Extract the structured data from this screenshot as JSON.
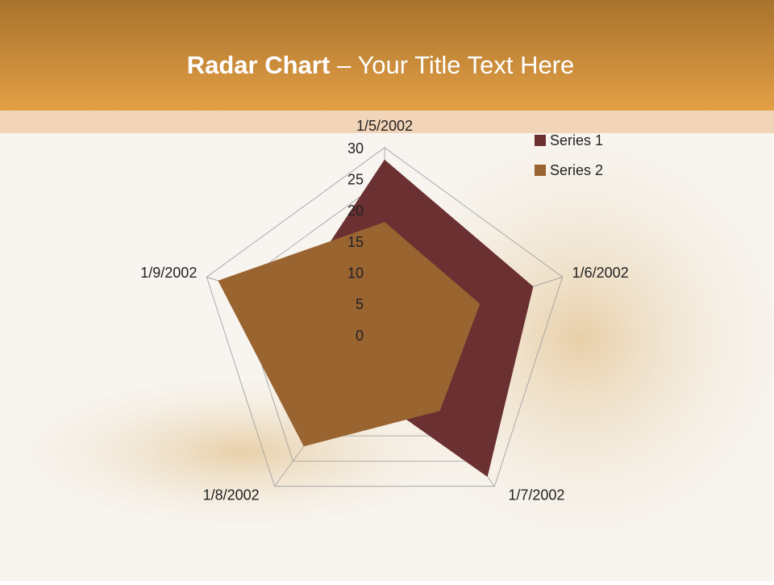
{
  "chart_data": {
    "type": "radar",
    "title": [
      "Radar Chart",
      "– Your Title Text Here"
    ],
    "categories": [
      "1/5/2002",
      "1/6/2002",
      "1/7/2002",
      "1/8/2002",
      "1/9/2002"
    ],
    "series": [
      {
        "name": "Series 1",
        "color": "#6b3031",
        "values": [
          28,
          25,
          28,
          9,
          16
        ]
      },
      {
        "name": "Series 2",
        "color": "#9a6431",
        "values": [
          18,
          16,
          15,
          22,
          28
        ]
      }
    ],
    "rlim": [
      0,
      30
    ],
    "rticks": [
      0,
      5,
      10,
      15,
      20,
      25,
      30
    ],
    "grid": true,
    "legend": "top-right"
  }
}
